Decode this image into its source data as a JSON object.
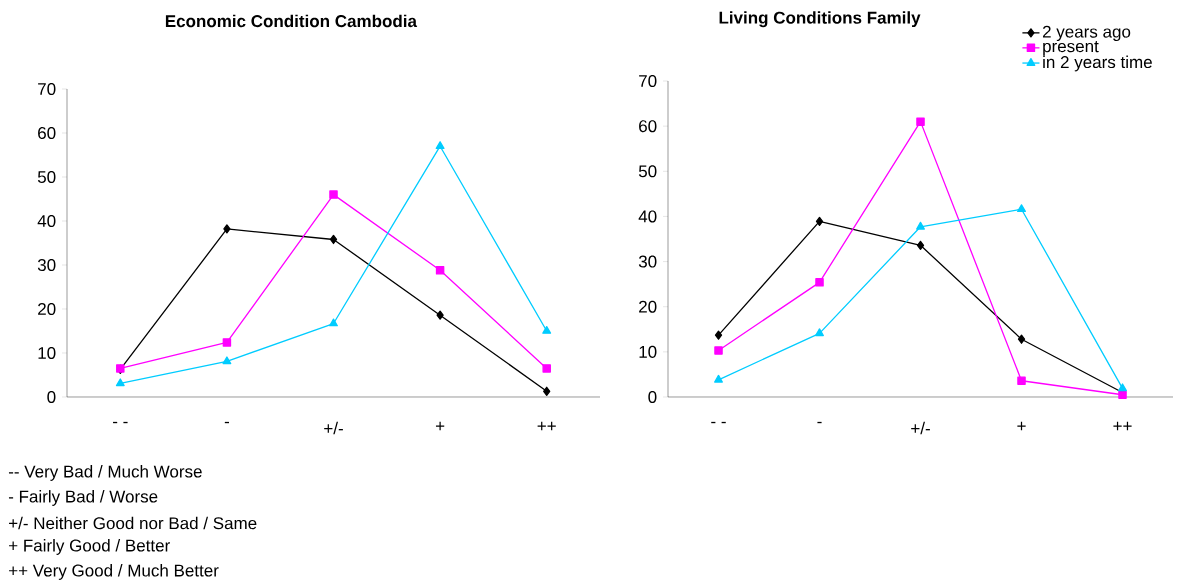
{
  "chart_data": [
    {
      "type": "line",
      "title": "Economic Condition Cambodia",
      "categories": [
        "- -",
        "-",
        "+/-",
        "+",
        "++"
      ],
      "series": [
        {
          "color": "#000000",
          "marker": "diamond",
          "values": [
            6.3,
            38.2,
            35.8,
            18.6,
            1.3
          ]
        },
        {
          "color": "#ff00ff",
          "marker": "square",
          "values": [
            6.5,
            12.4,
            46,
            28.8,
            6.5
          ]
        },
        {
          "color": "#00ccff",
          "marker": "triangle",
          "values": [
            3.1,
            8.1,
            16.7,
            57,
            15
          ]
        }
      ],
      "ylim": [
        0,
        70
      ],
      "yticks": [
        0,
        10,
        20,
        30,
        40,
        50,
        60,
        70
      ],
      "grid": false,
      "legend": false,
      "annotations": [
        "--  Very Bad / Much Worse",
        "-   Fairly Bad / Worse",
        "+/- Neither Good nor Bad / Same",
        "+  Fairly Good / Better",
        "++ Very Good / Much Better"
      ]
    },
    {
      "type": "line",
      "title": "Living Conditions Family",
      "categories": [
        "- -",
        "-",
        "+/-",
        "+",
        "++"
      ],
      "series": [
        {
          "name": "2 years ago",
          "color": "#000000",
          "marker": "diamond",
          "values": [
            13.7,
            38.9,
            33.6,
            12.8,
            1
          ]
        },
        {
          "name": "present",
          "color": "#ff00ff",
          "marker": "square",
          "values": [
            10.3,
            25.4,
            61,
            3.6,
            0.5
          ]
        },
        {
          "name": "in 2 years time",
          "color": "#00ccff",
          "marker": "triangle",
          "values": [
            3.8,
            14.1,
            37.7,
            41.6,
            1.9
          ]
        }
      ],
      "ylim": [
        0,
        70
      ],
      "yticks": [
        0,
        10,
        20,
        30,
        40,
        50,
        60,
        70
      ],
      "grid": false,
      "legend": "top right"
    }
  ]
}
